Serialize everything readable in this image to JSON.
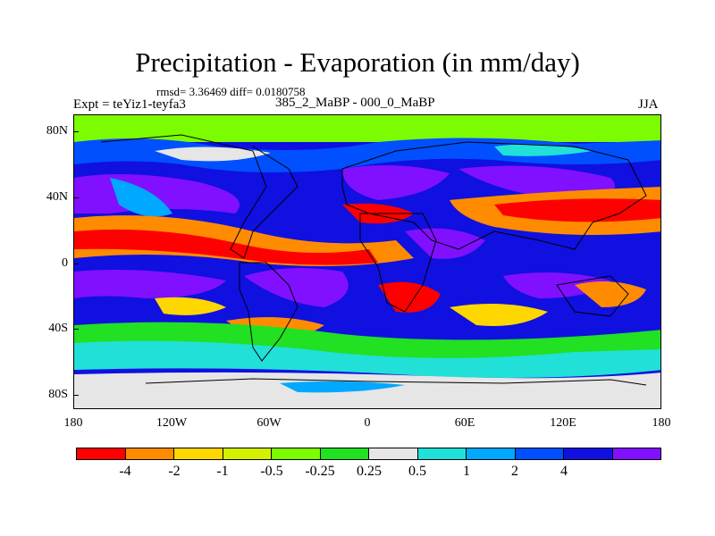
{
  "title": "Precipitation - Evaporation (in mm/day)",
  "stats": "rmsd= 3.36469 diff= 0.0180758",
  "expt": "Expt = teYiz1-teyfa3",
  "period": "385_2_MaBP - 000_0_MaBP",
  "season": "JJA",
  "y_labels": [
    "80N",
    "40N",
    "0",
    "40S",
    "80S"
  ],
  "x_labels": [
    "180",
    "120W",
    "60W",
    "0",
    "60E",
    "120E",
    "180"
  ],
  "colorbar": {
    "labels": [
      "-4",
      "-2",
      "-1",
      "-0.5",
      "-0.25",
      "0.25",
      "0.5",
      "1",
      "2",
      "4"
    ],
    "colors": [
      "#ff0000",
      "#ff8c00",
      "#ffd700",
      "#d2f000",
      "#7cfc00",
      "#22e022",
      "#e6e6e6",
      "#20e0d8",
      "#00a8ff",
      "#0050ff",
      "#1010e0",
      "#8010ff"
    ]
  }
}
